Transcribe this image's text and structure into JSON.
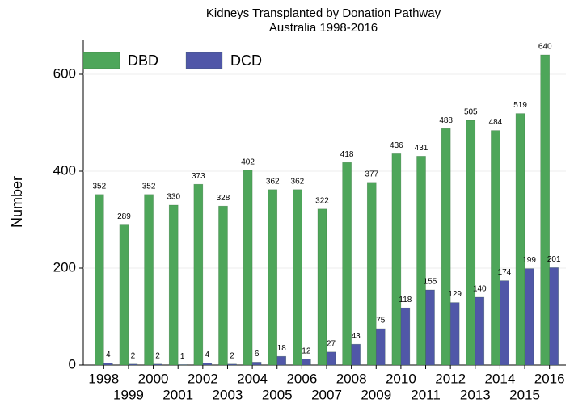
{
  "chart_data": {
    "type": "bar",
    "title": "Kidneys Transplanted by Donation Pathway",
    "subtitle": "Australia 1998-2016",
    "y_label": "Number",
    "categories": [
      "1998",
      "1999",
      "2000",
      "2001",
      "2002",
      "2003",
      "2004",
      "2005",
      "2006",
      "2007",
      "2008",
      "2009",
      "2010",
      "2011",
      "2012",
      "2013",
      "2014",
      "2015",
      "2016"
    ],
    "series": [
      {
        "name": "DBD",
        "color": "#4ea65a",
        "values": [
          352,
          289,
          352,
          330,
          373,
          328,
          402,
          362,
          362,
          322,
          418,
          377,
          436,
          431,
          488,
          505,
          484,
          519,
          640
        ]
      },
      {
        "name": "DCD",
        "color": "#5057a8",
        "values": [
          4,
          2,
          2,
          1,
          4,
          2,
          6,
          18,
          12,
          27,
          43,
          75,
          118,
          155,
          129,
          140,
          174,
          199,
          201
        ]
      }
    ],
    "ylim": [
      0,
      670
    ],
    "yticks": [
      0,
      200,
      400,
      600
    ],
    "grid": true,
    "legend": "top-left"
  }
}
